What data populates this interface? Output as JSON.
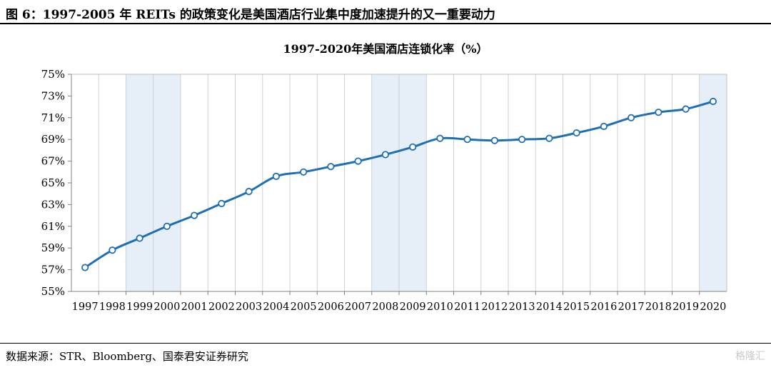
{
  "figure_title": "图 6：1997-2005 年 REITs 的政策变化是美国酒店行业集中度加速提升的又一重要动力",
  "source": "数据来源：STR、Bloomberg、国泰君安证券研究",
  "watermark": "格隆汇",
  "colors": {
    "line": "#1f6fb5",
    "marker_fill": "#ffffff",
    "band": "#e6eef8",
    "grid": "#d0d0d0"
  },
  "chart_data": {
    "type": "line",
    "title": "1997-2020年美国酒店连锁化率（%）",
    "xlabel": "",
    "ylabel": "",
    "categories": [
      "1997",
      "1998",
      "1999",
      "2000",
      "2001",
      "2002",
      "2003",
      "2004",
      "2005",
      "2006",
      "2007",
      "2008",
      "2009",
      "2010",
      "2011",
      "2012",
      "2013",
      "2014",
      "2015",
      "2016",
      "2017",
      "2018",
      "2019",
      "2020"
    ],
    "series": [
      {
        "values": [
          57.2,
          58.8,
          59.9,
          61.0,
          62.0,
          63.1,
          64.2,
          65.6,
          66.0,
          66.5,
          67.0,
          67.6,
          68.3,
          69.1,
          69.0,
          68.9,
          69.0,
          69.1,
          69.6,
          70.2,
          71.0,
          71.5,
          71.8,
          72.5
        ]
      }
    ],
    "ylim": [
      55,
      75
    ],
    "yticks": [
      "55%",
      "57%",
      "59%",
      "61%",
      "63%",
      "65%",
      "67%",
      "69%",
      "71%",
      "73%",
      "75%"
    ],
    "shaded_periods": [
      [
        "1999",
        "2000"
      ],
      [
        "2008",
        "2009"
      ],
      [
        "2020",
        "2020"
      ]
    ],
    "grid": "vertical",
    "legend": "none"
  }
}
